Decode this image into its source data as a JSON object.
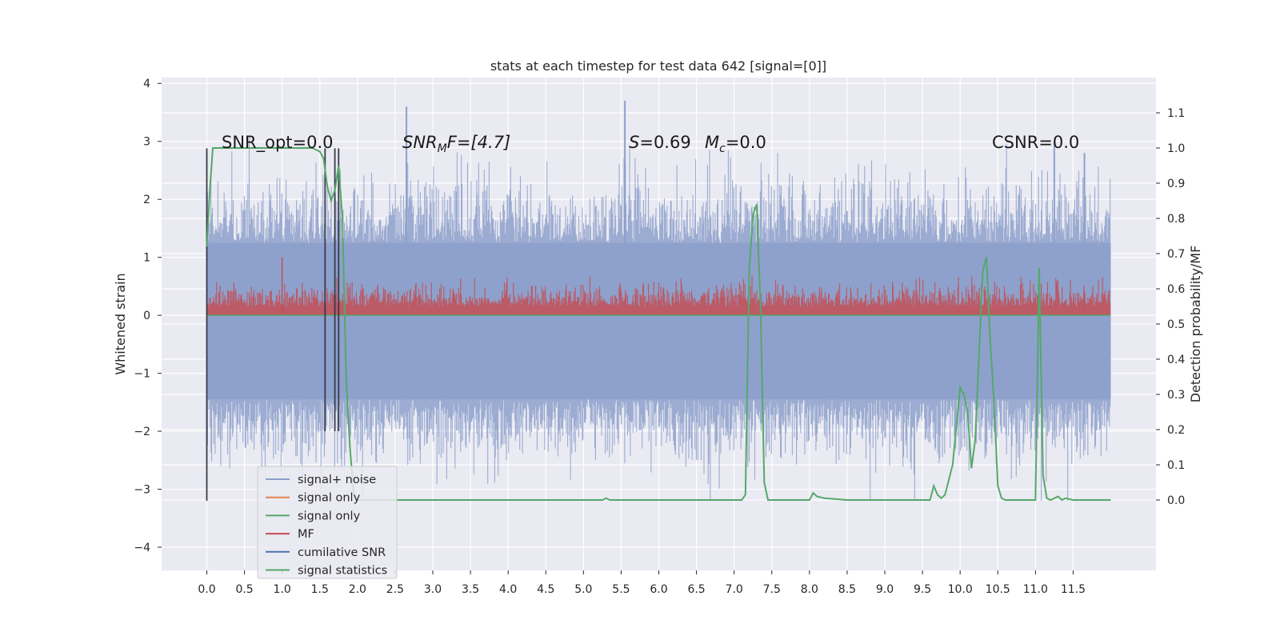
{
  "chart_data": {
    "type": "line",
    "title": "stats at each timestep for test data 642 [signal=[0]]",
    "xlabel": "",
    "ylabel": "Whitened strain",
    "ylabel_right": "Detection probability/MF",
    "xlim": [
      -0.6,
      12.6
    ],
    "ylim": [
      -4.4,
      4.1
    ],
    "ylim_right": [
      -0.2,
      1.2
    ],
    "x_ticks": [
      "0.0",
      "0.5",
      "1.0",
      "1.5",
      "2.0",
      "2.5",
      "3.0",
      "3.5",
      "4.0",
      "4.5",
      "5.0",
      "5.5",
      "6.0",
      "6.5",
      "7.0",
      "7.5",
      "8.0",
      "8.5",
      "9.0",
      "9.5",
      "10.0",
      "10.5",
      "11.0",
      "11.5"
    ],
    "y_ticks": [
      "4",
      "3",
      "2",
      "1",
      "0",
      "−1",
      "−2",
      "−3",
      "−4"
    ],
    "y_ticks_right": [
      "1.1",
      "1.0",
      "0.9",
      "0.8",
      "0.7",
      "0.6",
      "0.5",
      "0.4",
      "0.3",
      "0.2",
      "0.1",
      "0.0"
    ],
    "grid": true,
    "annotations": {
      "snr_opt": "SNR_opt=0.0",
      "snr_mf_main": "SNR",
      "snr_mf_sub": "M",
      "snr_mf_rest": "F=[4.7]",
      "s_main": "S",
      "s_rest": "=0.69",
      "mc_main": "M",
      "mc_sub": "c",
      "mc_rest": "=0.0",
      "csnr": "CSNR=0.0"
    },
    "legend": {
      "position": "lower-left",
      "entries": [
        {
          "label": "signal+ noise",
          "color": "#8da0cb"
        },
        {
          "label": "signal only",
          "color": "#dd8452"
        },
        {
          "label": "signal only",
          "color": "#55a868"
        },
        {
          "label": "MF",
          "color": "#c44e52"
        },
        {
          "label": "cumilative SNR",
          "color": "#4c72b0"
        },
        {
          "label": "signal statistics",
          "color": "#55a868"
        }
      ]
    },
    "series": [
      {
        "name": "signal+ noise",
        "color": "#8da0cb",
        "axis": "left",
        "noise_peaks": [
          {
            "x": 2.65,
            "y": 3.6
          },
          {
            "x": 5.55,
            "y": 3.7
          },
          {
            "x": 11.65,
            "y": 2.8
          },
          {
            "x": 11.25,
            "y": 3.0
          }
        ]
      },
      {
        "name": "MF",
        "color": "#c44e52",
        "axis": "left"
      },
      {
        "name": "cumilative SNR",
        "color": "#4c72b0",
        "axis": "left",
        "vlines": [
          0.0,
          1.57,
          1.7,
          1.75
        ]
      },
      {
        "name": "signal statistics",
        "color": "#55a868",
        "axis": "right",
        "points": [
          [
            0.0,
            0.72
          ],
          [
            0.04,
            0.88
          ],
          [
            0.08,
            1.0
          ],
          [
            0.2,
            1.0
          ],
          [
            0.5,
            1.0
          ],
          [
            1.0,
            1.0
          ],
          [
            1.4,
            1.0
          ],
          [
            1.5,
            0.99
          ],
          [
            1.55,
            0.97
          ],
          [
            1.6,
            0.89
          ],
          [
            1.65,
            0.85
          ],
          [
            1.7,
            0.88
          ],
          [
            1.75,
            0.95
          ],
          [
            1.8,
            0.8
          ],
          [
            1.85,
            0.35
          ],
          [
            1.9,
            0.15
          ],
          [
            1.95,
            0.02
          ],
          [
            2.0,
            0.0
          ],
          [
            2.5,
            0.0
          ],
          [
            3.0,
            0.0
          ],
          [
            4.0,
            0.0
          ],
          [
            5.0,
            0.0
          ],
          [
            5.25,
            0.0
          ],
          [
            5.3,
            0.005
          ],
          [
            5.35,
            0.0
          ],
          [
            6.0,
            0.0
          ],
          [
            6.5,
            0.0
          ],
          [
            7.0,
            0.0
          ],
          [
            7.1,
            0.0
          ],
          [
            7.15,
            0.015
          ],
          [
            7.2,
            0.65
          ],
          [
            7.25,
            0.81
          ],
          [
            7.3,
            0.84
          ],
          [
            7.35,
            0.55
          ],
          [
            7.4,
            0.05
          ],
          [
            7.45,
            0.0
          ],
          [
            7.8,
            0.0
          ],
          [
            8.0,
            0.0
          ],
          [
            8.05,
            0.02
          ],
          [
            8.1,
            0.01
          ],
          [
            8.2,
            0.005
          ],
          [
            8.5,
            0.0
          ],
          [
            9.0,
            0.0
          ],
          [
            9.5,
            0.0
          ],
          [
            9.6,
            0.0
          ],
          [
            9.65,
            0.04
          ],
          [
            9.7,
            0.015
          ],
          [
            9.75,
            0.005
          ],
          [
            9.8,
            0.015
          ],
          [
            9.9,
            0.1
          ],
          [
            10.0,
            0.32
          ],
          [
            10.05,
            0.3
          ],
          [
            10.1,
            0.25
          ],
          [
            10.15,
            0.09
          ],
          [
            10.2,
            0.17
          ],
          [
            10.3,
            0.65
          ],
          [
            10.35,
            0.69
          ],
          [
            10.4,
            0.45
          ],
          [
            10.45,
            0.28
          ],
          [
            10.5,
            0.04
          ],
          [
            10.55,
            0.005
          ],
          [
            10.6,
            0.0
          ],
          [
            11.0,
            0.0
          ],
          [
            11.05,
            0.66
          ],
          [
            11.1,
            0.07
          ],
          [
            11.15,
            0.005
          ],
          [
            11.2,
            0.0
          ],
          [
            11.3,
            0.01
          ],
          [
            11.35,
            0.0
          ],
          [
            11.4,
            0.005
          ],
          [
            11.5,
            0.0
          ],
          [
            12.0,
            0.0
          ]
        ]
      }
    ]
  }
}
